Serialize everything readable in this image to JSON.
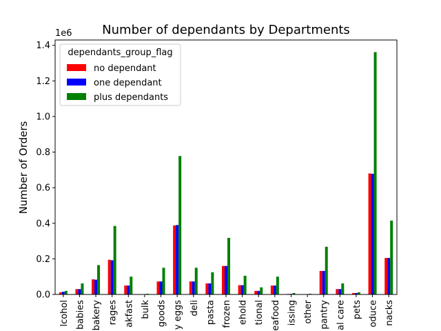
{
  "chart_data": {
    "type": "bar",
    "title": "Number of dependants by Departments",
    "xlabel": "",
    "ylabel": "Number of Orders",
    "y_offset_label": "1e6",
    "ylim": [
      0,
      1.43
    ],
    "yticks": [
      0.0,
      0.2,
      0.4,
      0.6,
      0.8,
      1.0,
      1.2,
      1.4
    ],
    "ytick_labels": [
      "0.0",
      "0.2",
      "0.4",
      "0.6",
      "0.8",
      "1.0",
      "1.2",
      "1.4"
    ],
    "categories": [
      "lcohol",
      "babies",
      "bakery",
      "rages",
      "akfast",
      "bulk",
      "goods",
      "y eggs",
      "deli",
      "pasta",
      "frozen",
      "ehold",
      "tional",
      "eafood",
      "issing",
      "other",
      "pantry",
      "al care",
      "pets",
      "oduce",
      "nacks"
    ],
    "legend": {
      "title": "dependants_group_flag",
      "placement": "upper left"
    },
    "grid": false,
    "series": [
      {
        "name": "no dependant",
        "color": "#ff0000",
        "values": [
          0.012,
          0.03,
          0.085,
          0.195,
          0.05,
          0.002,
          0.073,
          0.388,
          0.073,
          0.062,
          0.16,
          0.052,
          0.02,
          0.05,
          0.003,
          0.002,
          0.132,
          0.03,
          0.008,
          0.68,
          0.205
        ]
      },
      {
        "name": "one dependant",
        "color": "#0000ff",
        "values": [
          0.015,
          0.03,
          0.083,
          0.192,
          0.05,
          0.002,
          0.073,
          0.39,
          0.073,
          0.062,
          0.16,
          0.052,
          0.02,
          0.05,
          0.003,
          0.002,
          0.132,
          0.03,
          0.008,
          0.678,
          0.205
        ]
      },
      {
        "name": "plus dependants",
        "color": "#008000",
        "values": [
          0.02,
          0.062,
          0.165,
          0.385,
          0.1,
          0.004,
          0.15,
          0.778,
          0.15,
          0.125,
          0.318,
          0.105,
          0.04,
          0.1,
          0.008,
          0.004,
          0.268,
          0.062,
          0.012,
          1.362,
          0.415
        ]
      }
    ]
  }
}
